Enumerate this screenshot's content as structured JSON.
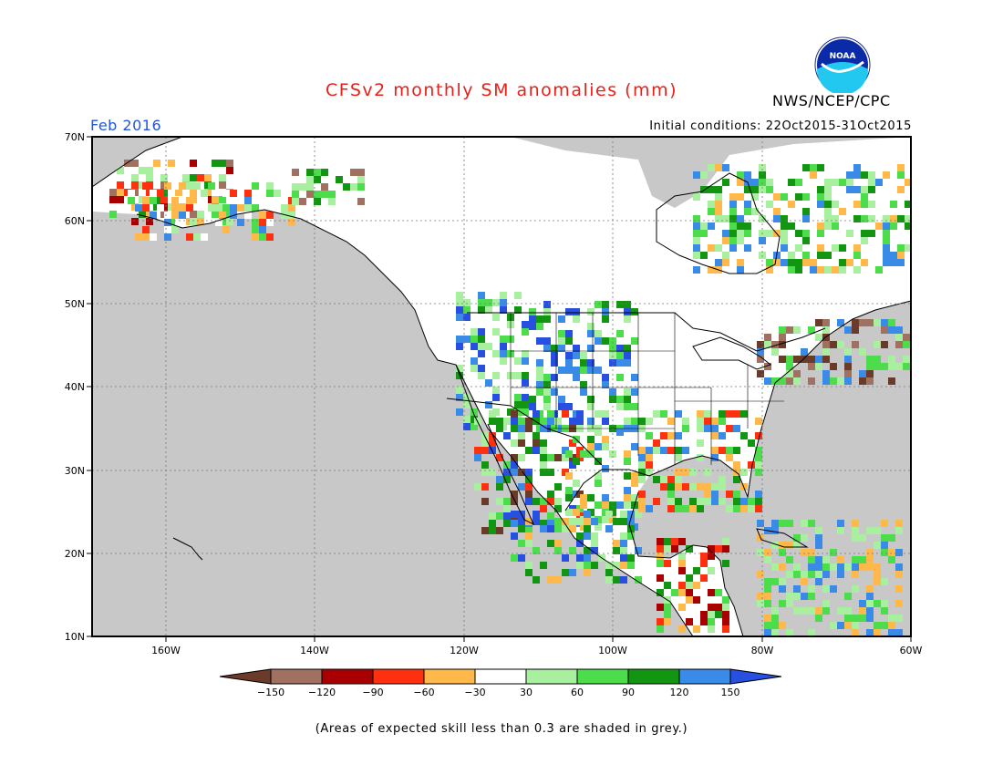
{
  "map": {
    "title": "CFSv2 monthly SM anomalies (mm)",
    "valid_month": "Feb 2016",
    "initial_conditions": "Initial conditions: 22Oct2015-31Oct2015",
    "agency": "NWS/NCEP/CPC",
    "logo_text": "NOAA",
    "lat_labels": [
      "70N",
      "60N",
      "50N",
      "40N",
      "30N",
      "20N",
      "10N"
    ],
    "lon_labels": [
      "160W",
      "140W",
      "120W",
      "100W",
      "80W",
      "60W"
    ],
    "colors": {
      "skill_grey": "#c8c8c8",
      "ocean_grey": "#c8c8c8",
      "accent_title": "#e8201a",
      "accent_date": "#2255dd"
    },
    "legend": {
      "labels": [
        "−150",
        "−120",
        "−90",
        "−60",
        "−30",
        "30",
        "60",
        "90",
        "120",
        "150"
      ],
      "colors": [
        "#6b3b2a",
        "#a07060",
        "#a80000",
        "#ff3010",
        "#ffb84a",
        "#ffffff",
        "#a8f0a0",
        "#4cdc4c",
        "#129612",
        "#3a8ae8",
        "#2850e0"
      ]
    },
    "footnote": "(Areas of expected skill less than 0.3 are shaded in grey.)"
  }
}
